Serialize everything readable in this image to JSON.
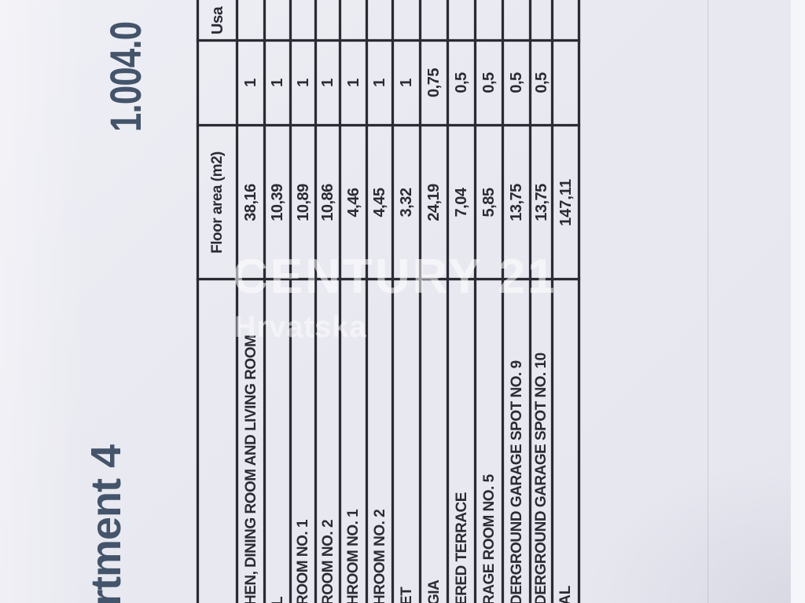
{
  "page": {
    "background": "#e9e9f1",
    "ink": "#2b2b34",
    "accent_text_color": "#44546a",
    "watermark_color": "rgba(255,255,255,0.55)"
  },
  "header": {
    "apartment_title_fragment": "rtment 4",
    "price_fragment": "1.004.0"
  },
  "watermark": {
    "line1": "CENTURY 21",
    "line2": "Hrvatska"
  },
  "table": {
    "floor_area_header": "Floor area (m2)",
    "usable_header_fragment": "Usa",
    "rows": [
      {
        "label": "HEN, DINING ROOM AND LIVING ROOM",
        "floor_area": "38,16",
        "coefficient": "1"
      },
      {
        "label": "L",
        "floor_area": "10,39",
        "coefficient": "1"
      },
      {
        "label": "ROOM NO. 1",
        "floor_area": "10,89",
        "coefficient": "1"
      },
      {
        "label": "ROOM NO. 2",
        "floor_area": "10,86",
        "coefficient": "1"
      },
      {
        "label": "HROOM NO. 1",
        "floor_area": "4,46",
        "coefficient": "1"
      },
      {
        "label": "HROOM NO. 2",
        "floor_area": "4,45",
        "coefficient": "1"
      },
      {
        "label": "ET",
        "floor_area": "3,32",
        "coefficient": "1"
      },
      {
        "label": "GIA",
        "floor_area": "24,19",
        "coefficient": "0,75"
      },
      {
        "label": "ERED TERRACE",
        "floor_area": "7,04",
        "coefficient": "0,5"
      },
      {
        "label": "RAGE ROOM NO. 5",
        "floor_area": "5,85",
        "coefficient": "0,5"
      },
      {
        "label": "DERGROUND GARAGE SPOT NO. 9",
        "floor_area": "13,75",
        "coefficient": "0,5"
      },
      {
        "label": "DERGROUND GARAGE SPOT NO. 10",
        "floor_area": "13,75",
        "coefficient": "0,5"
      },
      {
        "label": "AL",
        "floor_area": "147,11",
        "coefficient": "",
        "total": true
      }
    ]
  }
}
